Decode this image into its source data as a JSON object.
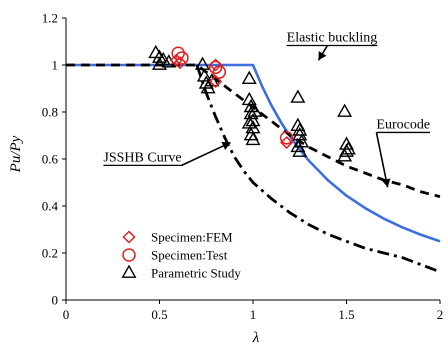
{
  "chart_data": {
    "type": "scatter",
    "xlabel": "λ",
    "ylabel": "Pu/Py",
    "xlim": [
      0,
      2
    ],
    "ylim": [
      0,
      1.2
    ],
    "x_ticks": [
      0,
      0.5,
      1,
      1.5,
      2
    ],
    "y_ticks": [
      0,
      0.2,
      0.4,
      0.6,
      0.8,
      1,
      1.2
    ],
    "x_tick_labels": [
      "0",
      "0.5",
      "1",
      "1.5",
      "2"
    ],
    "y_tick_labels": [
      "0",
      "0.2",
      "0.4",
      "0.6",
      "0.8",
      "1",
      "1.2"
    ],
    "grid": false,
    "legend_position": "bottom-left",
    "curves": [
      {
        "name": "Elastic buckling",
        "color": "#3b6fe0",
        "style": "solid",
        "x": [
          0,
          1,
          1.05,
          1.1,
          1.15,
          1.2,
          1.25,
          1.3,
          1.4,
          1.5,
          1.6,
          1.7,
          1.8,
          1.9,
          2.0
        ],
        "y": [
          1,
          1,
          0.907,
          0.826,
          0.756,
          0.694,
          0.64,
          0.592,
          0.51,
          0.444,
          0.391,
          0.346,
          0.309,
          0.277,
          0.25
        ]
      },
      {
        "name": "Eurocode",
        "color": "#000000",
        "style": "dashed",
        "x": [
          0,
          0.7,
          0.8,
          0.9,
          1.0,
          1.1,
          1.2,
          1.3,
          1.4,
          1.5,
          1.6,
          1.7,
          1.8,
          1.9,
          2.0
        ],
        "y": [
          1,
          1,
          0.94,
          0.88,
          0.82,
          0.76,
          0.7,
          0.65,
          0.61,
          0.57,
          0.54,
          0.51,
          0.49,
          0.46,
          0.44
        ]
      },
      {
        "name": "JSSHB Curve",
        "color": "#000000",
        "style": "dashdot",
        "x": [
          0.7,
          0.75,
          0.8,
          0.85,
          0.9,
          0.95,
          1.0,
          1.1,
          1.2,
          1.3,
          1.4,
          1.5,
          1.6,
          1.7,
          1.8,
          1.9,
          2.0
        ],
        "y": [
          1,
          0.88,
          0.78,
          0.69,
          0.61,
          0.55,
          0.5,
          0.43,
          0.37,
          0.32,
          0.28,
          0.25,
          0.22,
          0.2,
          0.18,
          0.15,
          0.12
        ]
      }
    ],
    "series": [
      {
        "name": "Specimen:FEM",
        "marker": "diamond",
        "color": "#e02020",
        "points": [
          [
            0.59,
            1.02
          ],
          [
            0.61,
            1.01
          ],
          [
            0.8,
            1.0
          ],
          [
            0.8,
            0.93
          ],
          [
            1.18,
            0.67
          ]
        ]
      },
      {
        "name": "Specimen:Test",
        "marker": "circle",
        "color": "#e02020",
        "points": [
          [
            0.6,
            1.05
          ],
          [
            0.62,
            1.03
          ],
          [
            0.8,
            0.99
          ],
          [
            0.82,
            0.97
          ],
          [
            1.18,
            0.69
          ]
        ]
      },
      {
        "name": "Parametric Study",
        "marker": "triangle",
        "color": "#000000",
        "points": [
          [
            0.48,
            1.05
          ],
          [
            0.5,
            1.03
          ],
          [
            0.5,
            1.0
          ],
          [
            0.52,
            1.02
          ],
          [
            0.55,
            1.01
          ],
          [
            0.73,
            1.0
          ],
          [
            0.74,
            0.95
          ],
          [
            0.75,
            0.92
          ],
          [
            0.76,
            0.9
          ],
          [
            0.78,
            0.93
          ],
          [
            0.98,
            0.94
          ],
          [
            0.98,
            0.85
          ],
          [
            0.99,
            0.82
          ],
          [
            0.99,
            0.79
          ],
          [
            1.0,
            0.76
          ],
          [
            1.0,
            0.73
          ],
          [
            0.99,
            0.7
          ],
          [
            1.0,
            0.68
          ],
          [
            1.01,
            0.8
          ],
          [
            0.98,
            0.75
          ],
          [
            1.24,
            0.86
          ],
          [
            1.24,
            0.74
          ],
          [
            1.25,
            0.72
          ],
          [
            1.25,
            0.7
          ],
          [
            1.26,
            0.67
          ],
          [
            1.24,
            0.65
          ],
          [
            1.25,
            0.63
          ],
          [
            1.49,
            0.8
          ],
          [
            1.5,
            0.66
          ],
          [
            1.5,
            0.63
          ],
          [
            1.49,
            0.61
          ],
          [
            1.51,
            0.64
          ]
        ]
      }
    ],
    "callouts": [
      {
        "text": "Elastic buckling",
        "x": 1.35,
        "y": 1.02,
        "tx": 1.18,
        "ty": 1.1,
        "anchor": "start"
      },
      {
        "text": "Eurocode",
        "x": 1.72,
        "y": 0.48,
        "tx": 1.66,
        "ty": 0.73,
        "anchor": "start"
      },
      {
        "text": "JSSHB Curve",
        "x": 0.88,
        "y": 0.67,
        "tx": 0.2,
        "ty": 0.59,
        "anchor": "start"
      }
    ]
  }
}
